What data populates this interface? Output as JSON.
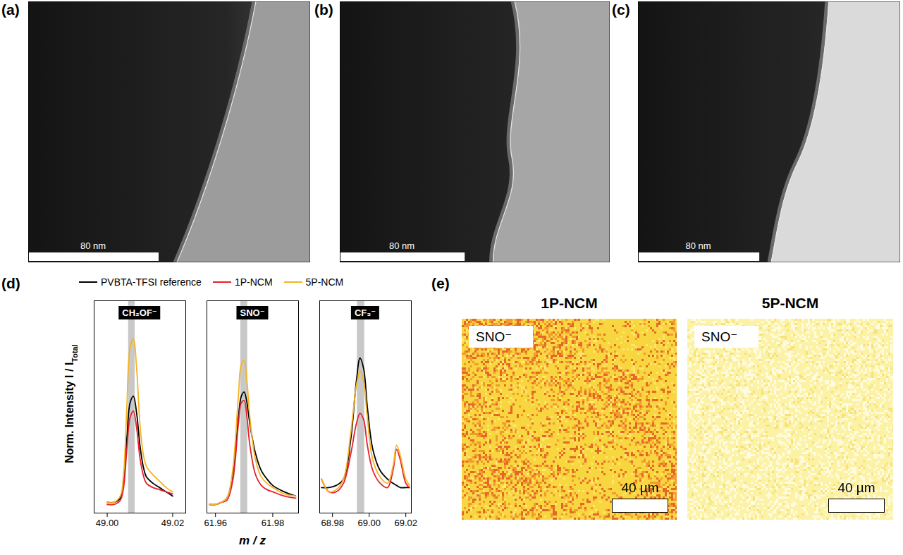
{
  "images": [
    {
      "letter": "(a)",
      "scale_bar": "80 nm"
    },
    {
      "letter": "(b)",
      "scale_bar": "80 nm"
    },
    {
      "letter": "(c)",
      "scale_bar": "80 nm"
    }
  ],
  "spectra": {
    "letter": "(d)",
    "y_label": {
      "text": "Norm. Intensity I / I",
      "subscript": "Total"
    },
    "x_label": "m / z"
  },
  "chart_data": [
    {
      "type": "line",
      "title": "CH₂OF⁻",
      "legend": "top",
      "tick_labels": "x",
      "x": [
        49.0,
        49.002,
        49.004,
        49.005,
        49.006,
        49.007,
        49.008,
        49.009,
        49.01,
        49.011,
        49.012,
        49.014,
        49.016,
        49.018,
        49.02
      ],
      "series": [
        {
          "name": "PVBTA-TFSI reference",
          "color": "#000000",
          "values": [
            0.05,
            0.05,
            0.07,
            0.15,
            0.35,
            0.52,
            0.55,
            0.47,
            0.32,
            0.22,
            0.17,
            0.14,
            0.12,
            0.1,
            0.08
          ]
        },
        {
          "name": "1P-NCM",
          "color": "#e8202a",
          "values": [
            0.04,
            0.04,
            0.06,
            0.12,
            0.3,
            0.45,
            0.48,
            0.4,
            0.26,
            0.18,
            0.14,
            0.12,
            0.11,
            0.1,
            0.09
          ]
        },
        {
          "name": "5P-NCM",
          "color": "#f5b324",
          "values": [
            0.05,
            0.05,
            0.08,
            0.18,
            0.5,
            0.78,
            0.82,
            0.68,
            0.42,
            0.28,
            0.22,
            0.18,
            0.15,
            0.12,
            0.1
          ]
        }
      ],
      "xlim": [
        48.996,
        49.024
      ],
      "xticks": [
        {
          "value": 49,
          "label": "49.00"
        },
        {
          "value": 49.02,
          "label": "49.02"
        }
      ],
      "ylim": [
        0,
        1
      ],
      "band": [
        49.0065,
        49.0085
      ]
    },
    {
      "type": "line",
      "title": "SNO⁻",
      "tick_labels": "x",
      "x": [
        61.958,
        61.96,
        61.962,
        61.964,
        61.966,
        61.968,
        61.969,
        61.97,
        61.971,
        61.972,
        61.974,
        61.976,
        61.978,
        61.98,
        61.984,
        61.988
      ],
      "series": [
        {
          "name": "PVBTA-TFSI reference",
          "color": "#000000",
          "values": [
            0.04,
            0.04,
            0.05,
            0.07,
            0.18,
            0.45,
            0.55,
            0.57,
            0.52,
            0.42,
            0.28,
            0.2,
            0.16,
            0.13,
            0.1,
            0.08
          ]
        },
        {
          "name": "1P-NCM",
          "color": "#e8202a",
          "values": [
            0.04,
            0.04,
            0.05,
            0.06,
            0.15,
            0.42,
            0.52,
            0.53,
            0.45,
            0.32,
            0.18,
            0.13,
            0.11,
            0.1,
            0.08,
            0.07
          ]
        },
        {
          "name": "5P-NCM",
          "color": "#f5b324",
          "values": [
            0.04,
            0.04,
            0.05,
            0.07,
            0.2,
            0.55,
            0.7,
            0.72,
            0.62,
            0.45,
            0.25,
            0.17,
            0.14,
            0.12,
            0.09,
            0.08
          ]
        }
      ],
      "xlim": [
        61.957,
        61.989
      ],
      "xticks": [
        61.96,
        61.98
      ],
      "ylim": [
        0,
        1
      ],
      "band": [
        61.9688,
        61.9712
      ]
    },
    {
      "type": "line",
      "title": "CF₃⁻",
      "tick_labels": "x",
      "x": [
        68.974,
        68.978,
        68.982,
        68.986,
        68.99,
        68.993,
        68.995,
        68.997,
        68.999,
        69.002,
        69.006,
        69.01,
        69.013,
        69.015,
        69.017,
        69.02,
        69.022
      ],
      "series": [
        {
          "name": "PVBTA-TFSI reference",
          "color": "#000000",
          "values": [
            0.12,
            0.12,
            0.13,
            0.16,
            0.35,
            0.62,
            0.73,
            0.68,
            0.5,
            0.3,
            0.2,
            0.16,
            0.14,
            0.13,
            0.12,
            0.12,
            0.12
          ]
        },
        {
          "name": "1P-NCM",
          "color": "#e8202a",
          "values": [
            0.16,
            0.1,
            0.1,
            0.14,
            0.28,
            0.42,
            0.47,
            0.44,
            0.32,
            0.2,
            0.14,
            0.12,
            0.2,
            0.3,
            0.25,
            0.14,
            0.12
          ]
        },
        {
          "name": "5P-NCM",
          "color": "#f5b324",
          "values": [
            0.16,
            0.1,
            0.11,
            0.16,
            0.38,
            0.6,
            0.67,
            0.62,
            0.45,
            0.25,
            0.17,
            0.14,
            0.22,
            0.32,
            0.27,
            0.16,
            0.13
          ]
        }
      ],
      "xlim": [
        68.973,
        69.023
      ],
      "xticks": [
        {
          "value": 68.98,
          "label": "68.98"
        },
        {
          "value": 69,
          "label": "69.00"
        },
        {
          "value": 69.02,
          "label": "69.02"
        }
      ],
      "ylim": [
        0,
        1
      ],
      "band": [
        68.9935,
        68.9975
      ]
    }
  ],
  "maps": {
    "letter": "(e)",
    "panels": [
      {
        "title": "1P-NCM",
        "label": "SNO⁻",
        "scale_bar": "40 µm"
      },
      {
        "title": "5P-NCM",
        "label": "SNO⁻",
        "scale_bar": "40 µm"
      }
    ]
  }
}
